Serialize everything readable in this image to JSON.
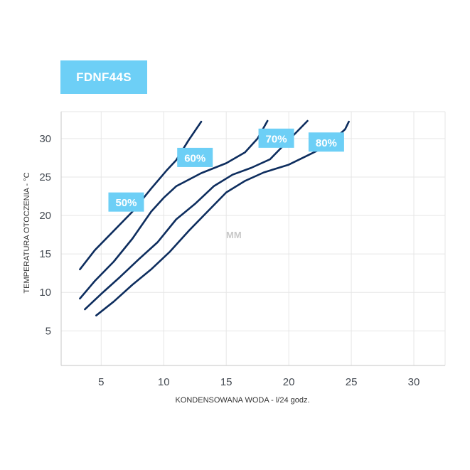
{
  "colors": {
    "accent": "#6dcff6",
    "line": "#0d2d5e",
    "grid": "#e6e6e6"
  },
  "title": "FDNF44S",
  "watermark": "MM",
  "chart_data": {
    "type": "line",
    "title": "FDNF44S",
    "xlabel": "KONDENSOWANA WODA - l/24 godz.",
    "ylabel": "TEMPERATURA OTOCZENIA - °C",
    "xlim": [
      1.8,
      32.5
    ],
    "ylim": [
      0.5,
      33.5
    ],
    "xticks": [
      5,
      10,
      15,
      20,
      25,
      30
    ],
    "yticks": [
      5,
      10,
      15,
      20,
      25,
      30
    ],
    "grid": true,
    "series": [
      {
        "name": "50%",
        "label_at": [
          7.0,
          21.7
        ],
        "x": [
          3.3,
          4.5,
          6.0,
          7.5,
          9.0,
          10.2,
          11.0,
          12.0,
          13.0
        ],
        "y": [
          13.0,
          15.5,
          18.0,
          20.5,
          23.5,
          25.8,
          27.2,
          29.8,
          32.2
        ]
      },
      {
        "name": "60%",
        "label_at": [
          12.5,
          27.5
        ],
        "x": [
          3.3,
          4.5,
          6.0,
          7.5,
          9.0,
          10.0,
          11.0,
          13.0,
          15.0,
          16.5,
          17.5,
          18.3
        ],
        "y": [
          9.2,
          11.5,
          14.0,
          17.0,
          20.5,
          22.3,
          23.8,
          25.5,
          26.8,
          28.2,
          30.0,
          32.3
        ]
      },
      {
        "name": "70%",
        "label_at": [
          19.0,
          30.0
        ],
        "x": [
          3.7,
          5.0,
          6.5,
          8.0,
          9.5,
          11.0,
          12.5,
          14.0,
          15.5,
          17.0,
          18.5,
          20.0,
          21.5
        ],
        "y": [
          7.8,
          9.8,
          12.0,
          14.3,
          16.5,
          19.5,
          21.5,
          23.8,
          25.3,
          26.2,
          27.3,
          29.8,
          32.3
        ]
      },
      {
        "name": "80%",
        "label_at": [
          23.0,
          29.5
        ],
        "x": [
          4.6,
          6.0,
          7.5,
          9.0,
          10.5,
          12.0,
          13.5,
          15.0,
          16.5,
          18.0,
          20.0,
          21.5,
          23.0,
          24.5,
          24.8
        ],
        "y": [
          7.0,
          8.8,
          11.0,
          13.0,
          15.3,
          18.0,
          20.5,
          23.0,
          24.5,
          25.6,
          26.6,
          27.8,
          29.0,
          31.2,
          32.2
        ]
      }
    ]
  }
}
